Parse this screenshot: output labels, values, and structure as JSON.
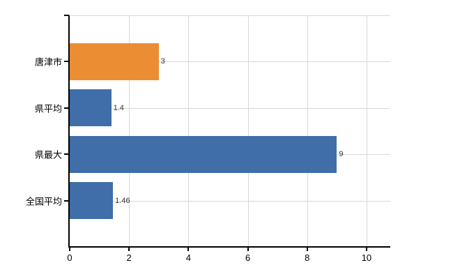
{
  "chart_data": {
    "type": "bar",
    "orientation": "horizontal",
    "title": "",
    "categories": [
      "唐津市",
      "県平均",
      "県最大",
      "全国平均"
    ],
    "values": [
      3,
      1.4,
      9,
      1.46
    ],
    "value_labels": [
      "3",
      "1.4",
      "9",
      "1.46"
    ],
    "series": [
      {
        "name": "",
        "values": [
          3,
          1.4,
          9,
          1.46
        ]
      }
    ],
    "bar_colors": [
      "#EB8E33",
      "#3F6EA8",
      "#3F6EA8",
      "#3F6EA8"
    ],
    "x_ticks": [
      0,
      2,
      4,
      6,
      8,
      10
    ],
    "x_tick_labels": [
      "0",
      "2",
      "4",
      "6",
      "8",
      "10"
    ],
    "xlim": [
      0,
      10.8
    ],
    "grid": true,
    "grid_color": "#d8d8d8",
    "axis_color": "#000000",
    "category_label_color": "#000000",
    "tick_label_color": "#000000",
    "value_label_color": "#333333",
    "background_color": "#ffffff",
    "legend": null
  }
}
